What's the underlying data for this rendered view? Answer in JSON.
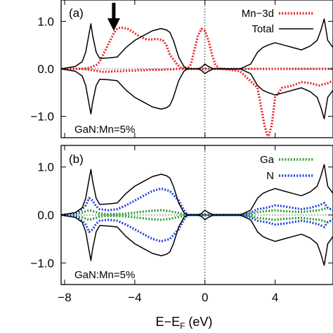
{
  "chart_data": [
    {
      "type": "line",
      "panel_label": "(a)",
      "annotation": "GaN:Mn=5%",
      "marker": "down-arrow",
      "marker_x": -5.2,
      "xlim": [
        -8.2,
        7.3
      ],
      "ylim": [
        -1.45,
        1.45
      ],
      "yticks": [
        {
          "v": 1.0,
          "label": "1.0"
        },
        {
          "v": 0.0,
          "label": "0.0"
        },
        {
          "v": -1.0,
          "label": "−1.0"
        }
      ],
      "zero_line_h": true,
      "zero_line_v": true,
      "series": [
        {
          "name": "Mn−3d",
          "color": "#e8262a",
          "style": "dotted",
          "x": [
            -8.2,
            -7.0,
            -6.6,
            -6.2,
            -6.0,
            -5.8,
            -5.6,
            -5.4,
            -5.2,
            -5.0,
            -4.8,
            -4.6,
            -4.4,
            -4.2,
            -4.0,
            -3.8,
            -3.6,
            -3.4,
            -3.2,
            -3.0,
            -2.8,
            -2.6,
            -2.4,
            -2.2,
            -2.0,
            -1.8,
            -1.6,
            -1.4,
            -1.2,
            -1.0,
            -0.8,
            -0.6,
            -0.4,
            -0.2,
            0.0,
            0.2,
            0.4,
            0.6,
            0.8,
            1.0,
            2.0,
            3.0,
            3.4,
            3.6,
            3.8,
            4.0,
            4.4,
            5.0,
            5.5,
            6.0,
            6.5,
            7.0,
            7.3
          ],
          "y": [
            0.0,
            0.0,
            0.02,
            0.08,
            0.15,
            0.3,
            0.45,
            0.6,
            0.75,
            0.85,
            0.87,
            0.86,
            0.84,
            0.8,
            0.75,
            0.7,
            0.66,
            0.63,
            0.62,
            0.62,
            0.63,
            0.62,
            0.6,
            0.5,
            0.3,
            0.2,
            0.1,
            0.03,
            0.01,
            0.0,
            0.1,
            0.4,
            0.7,
            0.84,
            0.8,
            0.6,
            0.3,
            0.08,
            0.01,
            0.0,
            0.0,
            0.0,
            0.0,
            0.0,
            0.0,
            0.0,
            0.0,
            0.0,
            0.0,
            0.0,
            0.0,
            0.0,
            0.0
          ],
          "y_neg": [
            0.0,
            0.0,
            -0.02,
            -0.04,
            -0.05,
            -0.06,
            -0.06,
            -0.06,
            -0.05,
            -0.05,
            -0.05,
            -0.04,
            -0.04,
            -0.04,
            -0.04,
            -0.03,
            -0.03,
            -0.03,
            -0.02,
            -0.02,
            -0.02,
            -0.02,
            -0.02,
            -0.01,
            -0.01,
            -0.01,
            0.0,
            0.0,
            0.0,
            0.0,
            0.0,
            0.0,
            0.0,
            0.0,
            0.0,
            0.0,
            0.0,
            0.0,
            0.0,
            0.0,
            -0.05,
            -0.4,
            -1.2,
            -1.45,
            -1.2,
            -0.6,
            -0.4,
            -0.35,
            -0.28,
            -0.3,
            -0.35,
            -0.3,
            -0.25
          ]
        },
        {
          "name": "Total",
          "color": "#000000",
          "style": "solid",
          "x": [
            -8.2,
            -7.4,
            -7.0,
            -6.8,
            -6.6,
            -6.5,
            -6.4,
            -6.2,
            -6.0,
            -5.5,
            -5.0,
            -4.5,
            -4.0,
            -3.5,
            -3.0,
            -2.5,
            -2.2,
            -2.0,
            -1.8,
            -1.5,
            -1.2,
            -1.0,
            -0.8,
            -0.6,
            -0.4,
            -0.2,
            0.0,
            0.2,
            0.5,
            1.0,
            2.0,
            2.6,
            3.0,
            3.3,
            3.6,
            4.0,
            4.5,
            5.0,
            5.5,
            6.0,
            6.4,
            6.6,
            6.8,
            7.0,
            7.3
          ],
          "y": [
            0.0,
            0.05,
            0.15,
            0.35,
            0.75,
            0.95,
            0.7,
            0.35,
            0.22,
            0.23,
            0.25,
            0.45,
            0.6,
            0.7,
            0.8,
            0.85,
            0.82,
            0.77,
            0.6,
            0.25,
            0.05,
            0.0,
            0.0,
            0.0,
            0.0,
            0.03,
            0.1,
            0.05,
            0.0,
            0.0,
            0.0,
            0.1,
            0.35,
            0.45,
            0.5,
            0.55,
            0.5,
            0.45,
            0.4,
            0.48,
            0.6,
            0.8,
            1.05,
            0.6,
            0.45
          ],
          "y_neg": [
            0.0,
            -0.05,
            -0.15,
            -0.35,
            -0.75,
            -0.95,
            -0.7,
            -0.35,
            -0.22,
            -0.23,
            -0.25,
            -0.45,
            -0.6,
            -0.7,
            -0.8,
            -0.85,
            -0.82,
            -0.77,
            -0.6,
            -0.25,
            -0.05,
            0.0,
            0.0,
            0.0,
            0.0,
            -0.03,
            -0.1,
            -0.05,
            0.0,
            0.0,
            0.0,
            -0.1,
            -0.35,
            -0.45,
            -0.5,
            -0.55,
            -0.5,
            -0.45,
            -0.4,
            -0.48,
            -0.6,
            -0.8,
            -1.05,
            -0.6,
            -0.45
          ]
        }
      ]
    },
    {
      "type": "line",
      "panel_label": "(b)",
      "annotation": "GaN:Mn=5%",
      "xlim": [
        -8.2,
        7.3
      ],
      "ylim": [
        -1.45,
        1.45
      ],
      "yticks": [
        {
          "v": 1.0,
          "label": "1.0"
        },
        {
          "v": 0.0,
          "label": "0.0"
        },
        {
          "v": -1.0,
          "label": "−1.0"
        }
      ],
      "zero_line_h": true,
      "zero_line_v": true,
      "series": [
        {
          "name": "Ga",
          "color": "#28a028",
          "style": "dotted",
          "x": [
            -8.2,
            -7.4,
            -7.0,
            -6.6,
            -6.2,
            -6.0,
            -5.5,
            -5.0,
            -4.5,
            -4.0,
            -3.5,
            -3.0,
            -2.5,
            -2.0,
            -1.5,
            -1.0,
            0.0,
            1.0,
            2.0,
            2.6,
            3.0,
            3.5,
            4.0,
            4.5,
            5.0,
            5.5,
            6.0,
            6.5,
            7.0,
            7.3
          ],
          "y": [
            0.0,
            0.02,
            0.05,
            0.1,
            0.06,
            0.03,
            0.02,
            0.02,
            0.03,
            0.05,
            0.07,
            0.09,
            0.1,
            0.08,
            0.04,
            0.0,
            0.0,
            0.0,
            0.0,
            0.02,
            0.06,
            0.08,
            0.1,
            0.08,
            0.07,
            0.06,
            0.08,
            0.1,
            0.15,
            0.1
          ],
          "y_neg": [
            0.0,
            -0.02,
            -0.05,
            -0.1,
            -0.06,
            -0.03,
            -0.02,
            -0.02,
            -0.03,
            -0.05,
            -0.07,
            -0.09,
            -0.1,
            -0.08,
            -0.04,
            0.0,
            0.0,
            0.0,
            0.0,
            -0.02,
            -0.06,
            -0.08,
            -0.1,
            -0.08,
            -0.07,
            -0.06,
            -0.08,
            -0.1,
            -0.15,
            -0.1
          ]
        },
        {
          "name": "N",
          "color": "#2340e0",
          "style": "dotted",
          "x": [
            -8.2,
            -7.4,
            -7.0,
            -6.8,
            -6.6,
            -6.4,
            -6.2,
            -6.0,
            -5.5,
            -5.0,
            -4.5,
            -4.0,
            -3.5,
            -3.0,
            -2.5,
            -2.0,
            -1.5,
            -1.2,
            -1.0,
            0.0,
            1.0,
            2.0,
            2.6,
            3.0,
            3.5,
            4.0,
            4.5,
            5.0,
            5.5,
            6.0,
            6.5,
            6.8,
            7.0,
            7.3
          ],
          "y": [
            0.0,
            0.03,
            0.12,
            0.2,
            0.35,
            0.3,
            0.18,
            0.12,
            0.1,
            0.12,
            0.2,
            0.3,
            0.4,
            0.5,
            0.55,
            0.5,
            0.3,
            0.1,
            0.0,
            0.0,
            0.0,
            0.0,
            0.05,
            0.12,
            0.15,
            0.2,
            0.18,
            0.15,
            0.12,
            0.15,
            0.2,
            0.25,
            0.15,
            0.1
          ],
          "y_neg": [
            0.0,
            -0.03,
            -0.12,
            -0.2,
            -0.35,
            -0.3,
            -0.18,
            -0.12,
            -0.1,
            -0.12,
            -0.2,
            -0.3,
            -0.4,
            -0.5,
            -0.55,
            -0.5,
            -0.3,
            -0.1,
            0.0,
            0.0,
            0.0,
            0.0,
            -0.05,
            -0.12,
            -0.15,
            -0.2,
            -0.18,
            -0.15,
            -0.12,
            -0.15,
            -0.2,
            -0.25,
            -0.15,
            -0.1
          ]
        },
        {
          "name": "",
          "color": "#000000",
          "style": "solid",
          "x": [
            -8.2,
            -7.4,
            -7.0,
            -6.8,
            -6.6,
            -6.5,
            -6.4,
            -6.2,
            -6.0,
            -5.5,
            -5.0,
            -4.5,
            -4.0,
            -3.5,
            -3.0,
            -2.5,
            -2.2,
            -2.0,
            -1.8,
            -1.5,
            -1.2,
            -1.0,
            -0.8,
            -0.6,
            -0.4,
            -0.2,
            0.0,
            0.2,
            0.5,
            1.0,
            2.0,
            2.6,
            3.0,
            3.3,
            3.6,
            4.0,
            4.5,
            5.0,
            5.5,
            6.0,
            6.4,
            6.6,
            6.8,
            7.0,
            7.3
          ],
          "y": [
            0.0,
            0.05,
            0.15,
            0.35,
            0.75,
            0.95,
            0.7,
            0.35,
            0.22,
            0.23,
            0.25,
            0.45,
            0.6,
            0.7,
            0.8,
            0.85,
            0.82,
            0.77,
            0.6,
            0.25,
            0.05,
            0.0,
            0.0,
            0.0,
            0.0,
            0.03,
            0.1,
            0.05,
            0.0,
            0.0,
            0.0,
            0.1,
            0.35,
            0.45,
            0.5,
            0.55,
            0.5,
            0.45,
            0.4,
            0.48,
            0.6,
            0.8,
            1.05,
            0.6,
            0.45
          ],
          "y_neg": [
            0.0,
            -0.05,
            -0.15,
            -0.35,
            -0.75,
            -0.95,
            -0.7,
            -0.35,
            -0.22,
            -0.23,
            -0.25,
            -0.45,
            -0.6,
            -0.7,
            -0.8,
            -0.85,
            -0.82,
            -0.77,
            -0.6,
            -0.25,
            -0.05,
            0.0,
            0.0,
            0.0,
            0.0,
            -0.03,
            -0.1,
            -0.05,
            0.0,
            0.0,
            0.0,
            -0.1,
            -0.35,
            -0.45,
            -0.5,
            -0.55,
            -0.5,
            -0.45,
            -0.4,
            -0.48,
            -0.6,
            -0.8,
            -1.05,
            -0.6,
            -0.45
          ]
        }
      ]
    }
  ],
  "xaxis": {
    "ticks": [
      {
        "v": -8,
        "label": "−8"
      },
      {
        "v": -4,
        "label": "−4"
      },
      {
        "v": 0,
        "label": "0"
      },
      {
        "v": 4,
        "label": "4"
      }
    ],
    "label_main": "E−E",
    "label_sub": "F",
    "label_unit": " (eV)"
  }
}
